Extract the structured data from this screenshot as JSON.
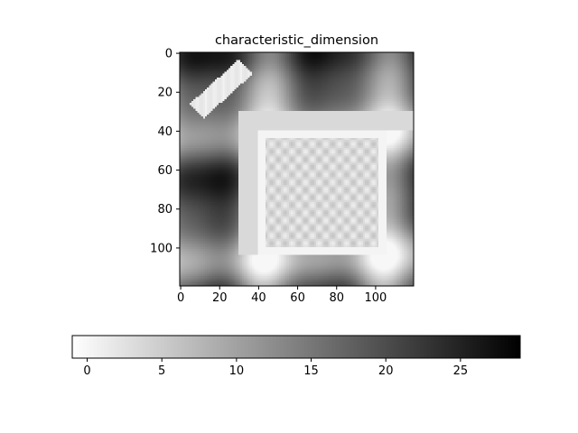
{
  "chart_data": {
    "type": "heatmap",
    "title": "characteristic_dimension",
    "xlabel": "",
    "ylabel": "",
    "grid": false,
    "xlim": [
      0,
      120
    ],
    "ylim": [
      120,
      0
    ],
    "x_ticks": [
      "0",
      "20",
      "40",
      "60",
      "80",
      "100"
    ],
    "y_ticks": [
      "0",
      "20",
      "40",
      "60",
      "80",
      "100"
    ],
    "colormap": "gray_r",
    "colorbar": {
      "orientation": "horizontal",
      "placement": "bottom",
      "range": [
        -1,
        29
      ],
      "ticks": [
        "0",
        "5",
        "10",
        "15",
        "20",
        "25"
      ]
    },
    "image_features": {
      "background": "periodic diamond pattern of distance values, black peaks (~28) at diamond centres, white troughs (~0) along diagonals",
      "diamond_centers": [
        [
          15,
          5
        ],
        [
          45,
          5
        ],
        [
          75,
          5
        ],
        [
          105,
          5
        ],
        [
          15,
          38
        ],
        [
          45,
          38
        ],
        [
          105,
          38
        ],
        [
          15,
          72
        ],
        [
          105,
          72
        ],
        [
          15,
          105
        ],
        [
          45,
          105
        ],
        [
          75,
          105
        ],
        [
          105,
          105
        ]
      ],
      "white_structure": "square frame x 40–106, y 40–104 with textured interior; wide light-gray band x 30–120, y 30–40 and x 30–40, y 30–104; diagonal white arm from (9,30) to (32,9)"
    }
  }
}
